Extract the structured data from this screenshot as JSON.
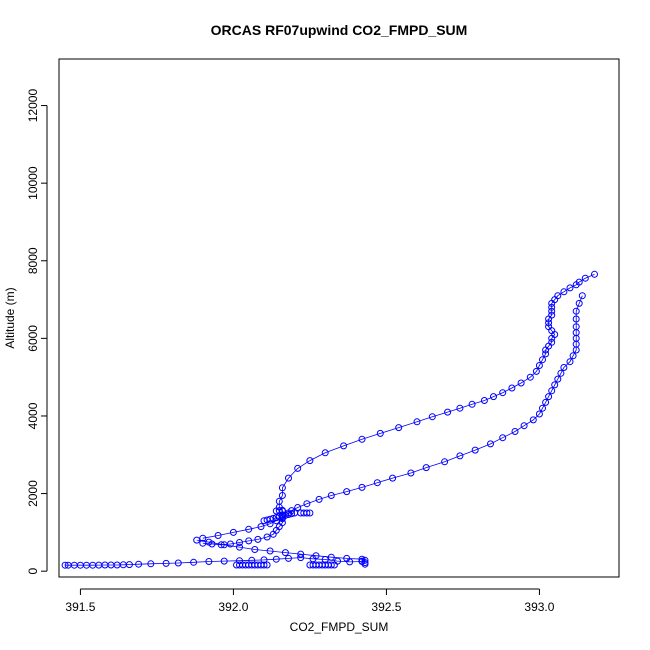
{
  "chart_data": {
    "type": "scatter",
    "title": "ORCAS RF07upwind CO2_FMPD_SUM",
    "xlabel": "CO2_FMPD_SUM",
    "ylabel": "Altitude (m)",
    "xlim": [
      391.43,
      393.26
    ],
    "ylim": [
      -150,
      13200
    ],
    "xticks": [
      391.5,
      392.0,
      392.5,
      393.0
    ],
    "xtick_labels": [
      "391.5",
      "392.0",
      "392.5",
      "393.0"
    ],
    "yticks": [
      0,
      2000,
      4000,
      6000,
      8000,
      10000,
      12000
    ],
    "ytick_labels": [
      "0",
      "2000",
      "4000",
      "6000",
      "8000",
      "10000",
      "12000"
    ],
    "grid": false,
    "series_color": "#0000ff",
    "series": [
      {
        "style": "points-and-lines",
        "x": [
          393.18,
          393.15,
          393.13,
          393.12,
          393.1,
          393.08,
          393.06,
          393.05,
          393.04,
          393.04,
          393.04,
          393.04,
          393.03,
          393.03,
          393.03,
          393.04,
          393.05,
          393.04,
          393.04,
          393.03,
          393.02,
          393.02,
          393.01,
          393.0,
          392.99,
          392.97,
          392.94,
          392.91,
          392.88,
          392.85,
          392.82,
          392.78,
          392.74,
          392.7,
          392.65,
          392.6,
          392.54,
          392.48,
          392.42,
          392.36,
          392.3,
          392.25,
          392.21,
          392.18,
          392.16,
          392.16,
          392.15,
          392.15,
          392.16,
          392.16,
          392.16,
          392.16,
          392.15,
          392.14,
          392.13,
          392.11,
          392.08,
          392.05,
          392.02,
          391.99,
          391.96,
          391.93,
          391.9
        ],
        "y": [
          7650,
          7550,
          7450,
          7380,
          7300,
          7200,
          7100,
          7000,
          6900,
          6800,
          6700,
          6600,
          6500,
          6400,
          6300,
          6200,
          6100,
          6000,
          5900,
          5800,
          5700,
          5600,
          5450,
          5300,
          5150,
          5000,
          4850,
          4720,
          4600,
          4500,
          4400,
          4300,
          4200,
          4100,
          3980,
          3850,
          3700,
          3550,
          3400,
          3230,
          3050,
          2850,
          2650,
          2400,
          2150,
          1950,
          1800,
          1650,
          1550,
          1450,
          1350,
          1250,
          1150,
          1050,
          950,
          880,
          820,
          780,
          740,
          700,
          680,
          700,
          720
        ]
      },
      {
        "style": "points-and-lines",
        "x": [
          391.9,
          391.95,
          392.0,
          392.05,
          392.09,
          392.12,
          392.14,
          392.16,
          392.17,
          392.18,
          392.19,
          392.21,
          392.24,
          392.28,
          392.32,
          392.37,
          392.42,
          392.47,
          392.52,
          392.58,
          392.63,
          392.69,
          392.74,
          392.79,
          392.84,
          392.88,
          392.92,
          392.95,
          392.98,
          393.0,
          393.01,
          393.02,
          393.03,
          393.04,
          393.05,
          393.06,
          393.07,
          393.08,
          393.1,
          393.11,
          393.12,
          393.12,
          393.12,
          393.12,
          393.12,
          393.12,
          393.12,
          393.13,
          393.14
        ],
        "y": [
          850,
          920,
          1000,
          1080,
          1150,
          1220,
          1300,
          1380,
          1440,
          1500,
          1560,
          1640,
          1740,
          1850,
          1950,
          2050,
          2160,
          2280,
          2400,
          2530,
          2670,
          2820,
          2970,
          3120,
          3280,
          3440,
          3600,
          3750,
          3900,
          4050,
          4200,
          4350,
          4500,
          4650,
          4800,
          4950,
          5100,
          5250,
          5400,
          5550,
          5700,
          5850,
          6000,
          6150,
          6300,
          6500,
          6700,
          6900,
          7100
        ]
      },
      {
        "style": "points-and-lines",
        "x": [
          391.88,
          391.92,
          391.97,
          392.02,
          392.07,
          392.12,
          392.17,
          392.22,
          392.27,
          392.32,
          392.37,
          392.42,
          392.43,
          392.42,
          392.38,
          392.34,
          392.3,
          392.26,
          392.22,
          392.18,
          392.14,
          392.1,
          392.06,
          392.02,
          391.97,
          391.92,
          391.87,
          391.82,
          391.78,
          391.73,
          391.69,
          391.66,
          391.64,
          391.62,
          391.6,
          391.58,
          391.56,
          391.54,
          391.52,
          391.5,
          391.48,
          391.46,
          391.45
        ],
        "y": [
          800,
          750,
          680,
          620,
          560,
          520,
          480,
          440,
          400,
          360,
          330,
          310,
          280,
          250,
          240,
          260,
          300,
          320,
          350,
          330,
          310,
          290,
          280,
          270,
          260,
          250,
          230,
          210,
          200,
          190,
          180,
          170,
          165,
          160,
          160,
          158,
          156,
          155,
          155,
          155,
          155,
          155,
          155
        ]
      },
      {
        "style": "points",
        "x": [
          392.01,
          392.02,
          392.03,
          392.04,
          392.05,
          392.06,
          392.07,
          392.08,
          392.09,
          392.1,
          392.11,
          392.25,
          392.26,
          392.27,
          392.28,
          392.29,
          392.3,
          392.31,
          392.32,
          392.33,
          392.43,
          392.43,
          392.42,
          392.22,
          392.23,
          392.24,
          392.25,
          392.1,
          392.11,
          392.12,
          392.13,
          392.14,
          392.15,
          392.16,
          392.17,
          392.18,
          392.19,
          392.2,
          392.14,
          392.15,
          392.16
        ],
        "y": [
          160,
          160,
          160,
          160,
          160,
          160,
          160,
          160,
          160,
          160,
          160,
          160,
          160,
          160,
          160,
          160,
          160,
          160,
          160,
          160,
          180,
          220,
          260,
          1500,
          1500,
          1500,
          1500,
          1300,
          1320,
          1340,
          1360,
          1380,
          1400,
          1420,
          1440,
          1460,
          1480,
          1500,
          1550,
          1560,
          1570
        ]
      }
    ]
  }
}
